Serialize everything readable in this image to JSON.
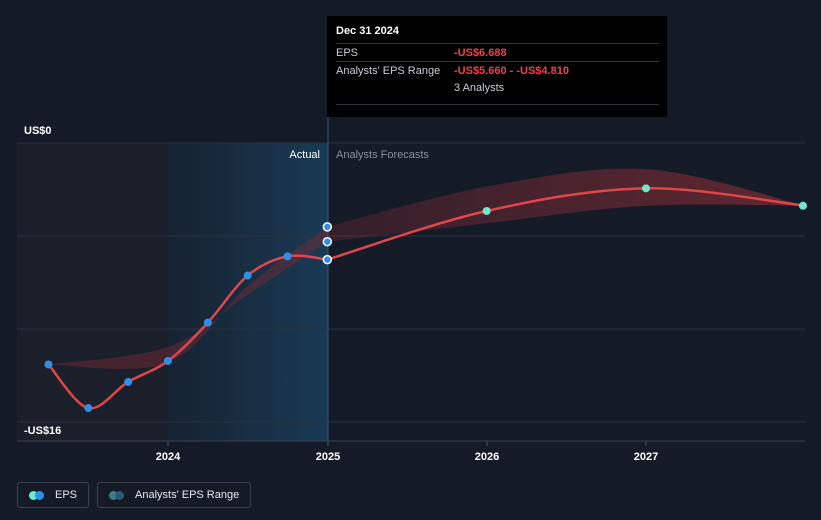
{
  "chart_data": {
    "type": "line",
    "y_axis_labels": [
      "US$0",
      "-US$16"
    ],
    "ylim": [
      -16,
      0
    ],
    "x_tick_labels": [
      "2024",
      "2025",
      "2026",
      "2027"
    ],
    "region_labels": {
      "actual": "Actual",
      "forecast": "Analysts Forecasts"
    },
    "series": [
      {
        "name": "EPS",
        "actual_points": [
          {
            "x": 2023.25,
            "y": -12.7
          },
          {
            "x": 2023.5,
            "y": -15.2
          },
          {
            "x": 2023.75,
            "y": -13.7
          },
          {
            "x": 2024.0,
            "y": -12.5
          },
          {
            "x": 2024.25,
            "y": -10.3
          },
          {
            "x": 2024.5,
            "y": -7.6
          },
          {
            "x": 2024.75,
            "y": -6.5
          },
          {
            "x": 2025.0,
            "y": -6.688
          }
        ],
        "forecast_points": [
          {
            "x": 2025.0,
            "y": -6.688
          },
          {
            "x": 2026.0,
            "y": -3.9
          },
          {
            "x": 2027.0,
            "y": -2.6
          },
          {
            "x": 2028.0,
            "y": -3.6
          }
        ]
      },
      {
        "name": "Analysts' EPS Range",
        "high": [
          {
            "x": 2025.0,
            "y": -4.81
          },
          {
            "x": 2026.0,
            "y": -2.5
          },
          {
            "x": 2027.0,
            "y": -1.5
          },
          {
            "x": 2028.0,
            "y": -3.6
          }
        ],
        "low": [
          {
            "x": 2025.0,
            "y": -5.66
          },
          {
            "x": 2026.0,
            "y": -4.6
          },
          {
            "x": 2027.0,
            "y": -3.6
          },
          {
            "x": 2028.0,
            "y": -3.6
          }
        ]
      }
    ]
  },
  "tooltip": {
    "date": "Dec 31 2024",
    "eps_label": "EPS",
    "eps_value": "-US$6.688",
    "range_label": "Analysts' EPS Range",
    "range_value": "-US$5.660 - -US$4.810",
    "analysts": "3 Analysts"
  },
  "legend": {
    "eps": "EPS",
    "range": "Analysts' EPS Range"
  },
  "colors": {
    "eps_line": "#e0454b",
    "actual_dot": "#2f8fe8",
    "forecast_dot": "#6fe8c8",
    "range_fill": "#7a2a33",
    "legend_range_dot": "#3f7d86"
  }
}
